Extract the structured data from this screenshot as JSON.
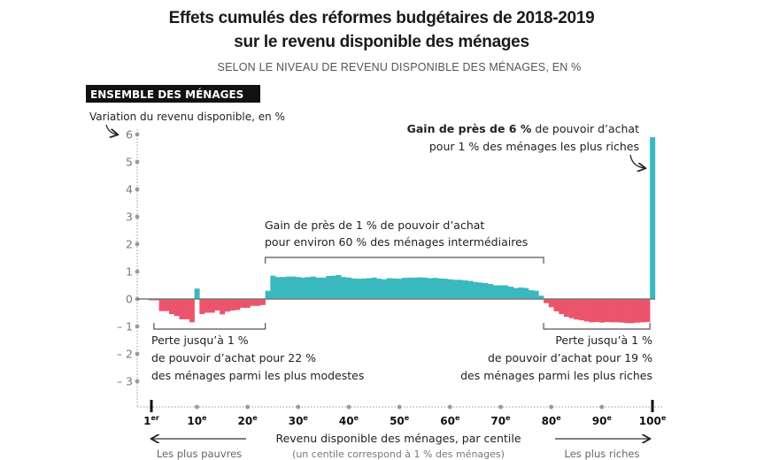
{
  "chart_data": {
    "type": "bar",
    "title_line1": "Effets cumulés des réformes budgétaires de 2018-2019",
    "title_line2": "sur le revenu disponible des ménages",
    "subtitle": "SELON LE NIVEAU DE REVENU DISPONIBLE DES MÉNAGES, EN %",
    "panel_label": "ENSEMBLE DES MÉNAGES",
    "ylabel": "Variation du revenu disponible, en %",
    "xlabel": "Revenu disponible des ménages, par centile",
    "xnote": "(un centile correspond à 1 % des ménages)",
    "direction_left": "Les plus pauvres",
    "direction_right": "Les plus riches",
    "ylim": [
      -3,
      6
    ],
    "yticks": [
      6,
      5,
      4,
      3,
      2,
      1,
      0,
      -1,
      -2,
      -3
    ],
    "ytick_labels": [
      "6",
      "5",
      "4",
      "3",
      "2",
      "1",
      "0",
      "– 1",
      "– 2",
      "– 3"
    ],
    "xlim": [
      1,
      100
    ],
    "xticks": [
      {
        "value": 1,
        "num": "1",
        "sup": "er"
      },
      {
        "value": 10,
        "num": "10",
        "sup": "e"
      },
      {
        "value": 20,
        "num": "20",
        "sup": "e"
      },
      {
        "value": 30,
        "num": "30",
        "sup": "e"
      },
      {
        "value": 40,
        "num": "40",
        "sup": "e"
      },
      {
        "value": 50,
        "num": "50",
        "sup": "e"
      },
      {
        "value": 60,
        "num": "60",
        "sup": "e"
      },
      {
        "value": 70,
        "num": "70",
        "sup": "e"
      },
      {
        "value": 80,
        "num": "80",
        "sup": "e"
      },
      {
        "value": 90,
        "num": "90",
        "sup": "e"
      },
      {
        "value": 100,
        "num": "100",
        "sup": "e"
      }
    ],
    "colors": {
      "gain": "#3ab8bf",
      "loss": "#ec546b",
      "zero": "#777777"
    },
    "x": [
      1,
      2,
      3,
      4,
      5,
      6,
      7,
      8,
      9,
      10,
      11,
      12,
      13,
      14,
      15,
      16,
      17,
      18,
      19,
      20,
      21,
      22,
      23,
      24,
      25,
      26,
      27,
      28,
      29,
      30,
      31,
      32,
      33,
      34,
      35,
      36,
      37,
      38,
      39,
      40,
      41,
      42,
      43,
      44,
      45,
      46,
      47,
      48,
      49,
      50,
      51,
      52,
      53,
      54,
      55,
      56,
      57,
      58,
      59,
      60,
      61,
      62,
      63,
      64,
      65,
      66,
      67,
      68,
      69,
      70,
      71,
      72,
      73,
      74,
      75,
      76,
      77,
      78,
      79,
      80,
      81,
      82,
      83,
      84,
      85,
      86,
      87,
      88,
      89,
      90,
      91,
      92,
      93,
      94,
      95,
      96,
      97,
      98,
      99,
      100
    ],
    "values": [
      -0.05,
      -0.05,
      -0.44,
      -0.44,
      -0.55,
      -0.62,
      -0.74,
      -0.74,
      -0.85,
      0.38,
      -0.55,
      -0.5,
      -0.5,
      -0.42,
      -0.56,
      -0.46,
      -0.42,
      -0.4,
      -0.32,
      -0.32,
      -0.25,
      -0.25,
      -0.22,
      0.3,
      0.85,
      0.8,
      0.8,
      0.82,
      0.82,
      0.8,
      0.78,
      0.8,
      0.82,
      0.78,
      0.78,
      0.84,
      0.85,
      0.87,
      0.8,
      0.78,
      0.75,
      0.74,
      0.75,
      0.76,
      0.78,
      0.74,
      0.72,
      0.76,
      0.75,
      0.74,
      0.77,
      0.78,
      0.78,
      0.79,
      0.78,
      0.76,
      0.77,
      0.75,
      0.74,
      0.72,
      0.7,
      0.7,
      0.68,
      0.66,
      0.62,
      0.6,
      0.58,
      0.55,
      0.5,
      0.5,
      0.5,
      0.45,
      0.4,
      0.42,
      0.4,
      0.32,
      0.3,
      0.12,
      -0.15,
      -0.3,
      -0.45,
      -0.55,
      -0.65,
      -0.7,
      -0.75,
      -0.78,
      -0.82,
      -0.85,
      -0.84,
      -0.86,
      -0.84,
      -0.85,
      -0.85,
      -0.86,
      -0.88,
      -0.88,
      -0.86,
      -0.85,
      -0.84,
      5.9
    ],
    "annotations": {
      "top_right": {
        "bold": "Gain de près de 6 %",
        "rest": " de pouvoir d’achat",
        "line2": "pour 1 % des ménages les plus riches"
      },
      "middle": {
        "line1": "Gain de près de 1 % de pouvoir d’achat",
        "line2": "pour environ 60 % des ménages intermédiaires",
        "range": [
          24,
          78
        ]
      },
      "left": {
        "line1": "Perte jusqu’à 1 %",
        "line2": "de pouvoir d’achat pour 22 %",
        "line3": "des ménages parmi les plus modestes",
        "range": [
          2,
          23
        ]
      },
      "right": {
        "line1": "Perte jusqu’à 1 %",
        "line2": "de pouvoir d’achat pour 19 %",
        "line3": "des ménages parmi les plus riches",
        "range": [
          79,
          99
        ]
      }
    }
  }
}
